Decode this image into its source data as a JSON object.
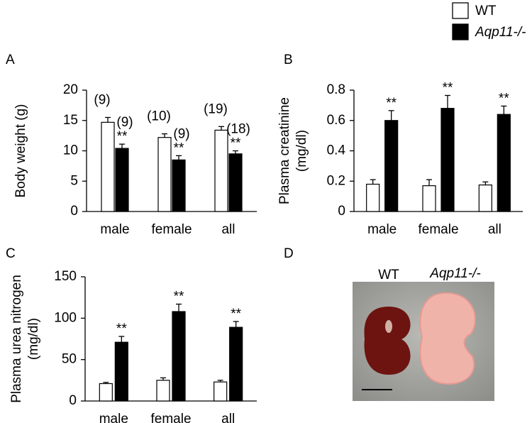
{
  "chart_data": [
    {
      "type": "bar",
      "panel": "A",
      "ylabel": [
        "Body weight (g)"
      ],
      "categories": [
        "male",
        "female",
        "all"
      ],
      "ylim": [
        0,
        20
      ],
      "yticks": [
        0,
        5,
        10,
        15,
        20
      ],
      "series": [
        {
          "name": "WT",
          "color": "#ffffff",
          "values": [
            14.7,
            12.2,
            13.4
          ],
          "errors": [
            0.8,
            0.6,
            0.6
          ],
          "n_labels": [
            "(9)",
            "(10)",
            "(19)"
          ]
        },
        {
          "name": "Aqp11-/-",
          "color": "#000000",
          "values": [
            10.4,
            8.5,
            9.5
          ],
          "errors": [
            0.7,
            0.7,
            0.5
          ],
          "n_labels": [
            "(9)",
            "(9)",
            "(18)"
          ],
          "significance": [
            "**",
            "**",
            "**"
          ]
        }
      ]
    },
    {
      "type": "bar",
      "panel": "B",
      "ylabel": [
        "Plasma creatinine",
        "(mg/dl)"
      ],
      "categories": [
        "male",
        "female",
        "all"
      ],
      "ylim": [
        0,
        0.8
      ],
      "yticks": [
        0,
        0.2,
        0.4,
        0.6,
        0.8
      ],
      "series": [
        {
          "name": "WT",
          "color": "#ffffff",
          "values": [
            0.18,
            0.17,
            0.175
          ],
          "errors": [
            0.03,
            0.04,
            0.02
          ]
        },
        {
          "name": "Aqp11-/-",
          "color": "#000000",
          "values": [
            0.6,
            0.68,
            0.64
          ],
          "errors": [
            0.065,
            0.085,
            0.055
          ],
          "significance": [
            "**",
            "**",
            "**"
          ]
        }
      ]
    },
    {
      "type": "bar",
      "panel": "C",
      "ylabel": [
        "Plasma urea nitrogen",
        "(mg/dl)"
      ],
      "categories": [
        "male",
        "female",
        "all"
      ],
      "ylim": [
        0,
        150
      ],
      "yticks": [
        0,
        50,
        100,
        150
      ],
      "series": [
        {
          "name": "WT",
          "color": "#ffffff",
          "values": [
            21,
            25,
            23
          ],
          "errors": [
            1.5,
            3,
            2
          ]
        },
        {
          "name": "Aqp11-/-",
          "color": "#000000",
          "values": [
            71,
            108,
            89
          ],
          "errors": [
            7,
            9,
            7
          ],
          "significance": [
            "**",
            "**",
            "**"
          ]
        }
      ]
    },
    {
      "type": "image",
      "panel": "D",
      "labels": [
        "WT",
        "Aqp11-/-"
      ]
    }
  ]
}
